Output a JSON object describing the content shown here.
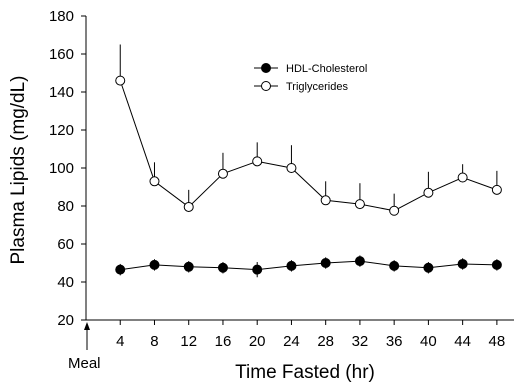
{
  "chart_data": {
    "type": "line",
    "title": "",
    "xlabel": "Time Fasted (hr)",
    "ylabel": "Plasma Lipids (mg/dL)",
    "x": [
      4,
      8,
      12,
      16,
      20,
      24,
      28,
      32,
      36,
      40,
      44,
      48
    ],
    "xlim": [
      0,
      50
    ],
    "ylim": [
      20,
      180
    ],
    "xticks": [
      "4",
      "8",
      "12",
      "16",
      "20",
      "24",
      "28",
      "32",
      "36",
      "40",
      "44",
      "48"
    ],
    "yticks": [
      "20",
      "40",
      "60",
      "80",
      "100",
      "120",
      "140",
      "160",
      "180"
    ],
    "legend_position": "top-right",
    "grid": false,
    "series": [
      {
        "name": "HDL-Cholesterol",
        "marker": "filled-circle",
        "color": "#000000",
        "values": [
          46.5,
          49,
          48,
          47.5,
          46.5,
          48.5,
          50,
          51,
          48.5,
          47.5,
          49.5,
          49
        ],
        "error_up": [
          3,
          3,
          3,
          3,
          4,
          3,
          3,
          3,
          3,
          3,
          3,
          3
        ],
        "error_down": [
          3,
          3,
          3,
          3,
          4,
          3,
          3,
          3,
          3,
          3,
          3,
          3
        ]
      },
      {
        "name": "Triglycerides",
        "marker": "open-circle",
        "color": "#000000",
        "values": [
          146,
          93,
          79.5,
          97,
          103.5,
          100,
          83,
          81,
          77.5,
          87,
          95,
          88.5
        ],
        "error_up": [
          19,
          10,
          9,
          11,
          10,
          12,
          10,
          11,
          9,
          11,
          7,
          10
        ],
        "error_down": [
          0,
          0,
          0,
          0,
          0,
          0,
          0,
          0,
          0,
          0,
          0,
          0
        ]
      }
    ],
    "annotations": [
      {
        "text": "Meal",
        "x": 0,
        "arrow": "up"
      }
    ]
  }
}
